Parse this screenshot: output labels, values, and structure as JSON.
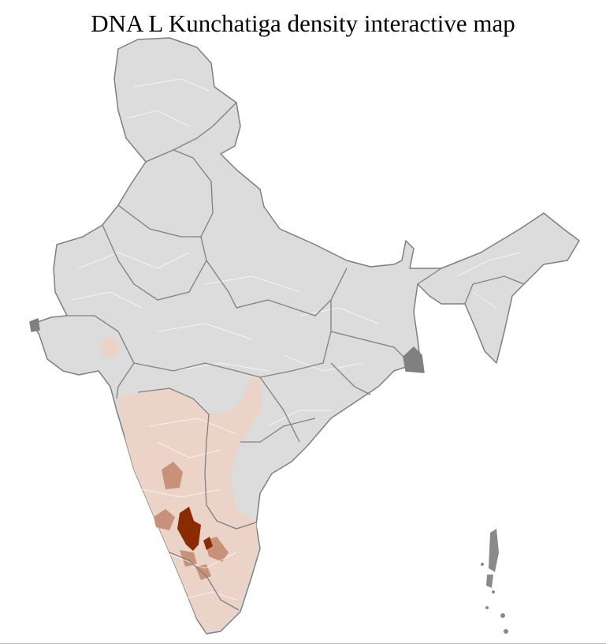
{
  "title": "DNA L Kunchatiga density interactive map",
  "map": {
    "region": "India",
    "colors": {
      "no_data": "#dcdcdc",
      "low": "#ecd3c7",
      "medium": "#c8917a",
      "high": "#8a2b00",
      "state_border": "#7f7f7f",
      "district_border": "#ffffff"
    },
    "highlighted_density_levels": [
      "low",
      "medium",
      "high"
    ]
  }
}
